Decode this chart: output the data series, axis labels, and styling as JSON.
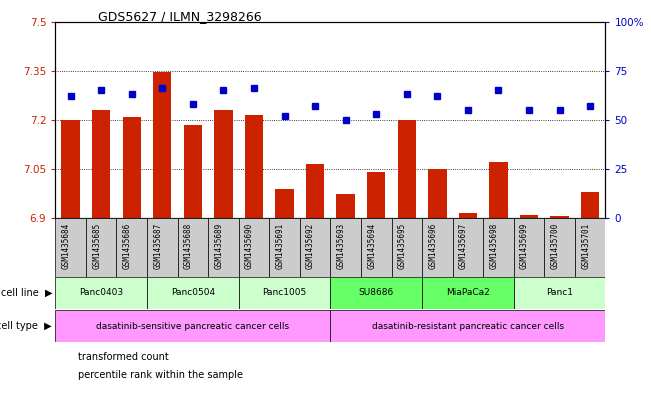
{
  "title": "GDS5627 / ILMN_3298266",
  "samples": [
    "GSM1435684",
    "GSM1435685",
    "GSM1435686",
    "GSM1435687",
    "GSM1435688",
    "GSM1435689",
    "GSM1435690",
    "GSM1435691",
    "GSM1435692",
    "GSM1435693",
    "GSM1435694",
    "GSM1435695",
    "GSM1435696",
    "GSM1435697",
    "GSM1435698",
    "GSM1435699",
    "GSM1435700",
    "GSM1435701"
  ],
  "red_values": [
    7.2,
    7.23,
    7.21,
    7.345,
    7.185,
    7.23,
    7.215,
    6.99,
    7.065,
    6.975,
    7.04,
    7.2,
    7.05,
    6.915,
    7.07,
    6.91,
    6.905,
    6.98
  ],
  "blue_values": [
    62,
    65,
    63,
    66,
    58,
    65,
    66,
    52,
    57,
    50,
    53,
    63,
    62,
    55,
    65,
    55,
    55,
    57
  ],
  "ylim_left": [
    6.9,
    7.5
  ],
  "ylim_right": [
    0,
    100
  ],
  "yticks_left": [
    6.9,
    7.05,
    7.2,
    7.35,
    7.5
  ],
  "yticks_right": [
    0,
    25,
    50,
    75,
    100
  ],
  "ytick_labels_left": [
    "6.9",
    "7.05",
    "7.2",
    "7.35",
    "7.5"
  ],
  "ytick_labels_right": [
    "0",
    "25",
    "50",
    "75",
    "100%"
  ],
  "grid_lines": [
    7.05,
    7.2,
    7.35
  ],
  "cell_lines": [
    {
      "label": "Panc0403",
      "start": 0,
      "end": 2
    },
    {
      "label": "Panc0504",
      "start": 3,
      "end": 5
    },
    {
      "label": "Panc1005",
      "start": 6,
      "end": 8
    },
    {
      "label": "SU8686",
      "start": 9,
      "end": 11
    },
    {
      "label": "MiaPaCa2",
      "start": 12,
      "end": 14
    },
    {
      "label": "Panc1",
      "start": 15,
      "end": 17
    }
  ],
  "cell_line_colors": [
    "#ccffcc",
    "#ccffcc",
    "#ccffcc",
    "#66ff66",
    "#66ff66",
    "#ccffcc"
  ],
  "cell_type_groups": [
    {
      "label": "dasatinib-sensitive pancreatic cancer cells",
      "start": 0,
      "end": 8
    },
    {
      "label": "dasatinib-resistant pancreatic cancer cells",
      "start": 9,
      "end": 17
    }
  ],
  "cell_type_color": "#ff99ff",
  "bar_color": "#cc2200",
  "dot_color": "#0000cc",
  "bg_color": "#ffffff",
  "sample_box_color": "#cccccc",
  "legend_items": [
    {
      "color": "#cc2200",
      "label": "transformed count"
    },
    {
      "color": "#0000cc",
      "label": "percentile rank within the sample"
    }
  ]
}
